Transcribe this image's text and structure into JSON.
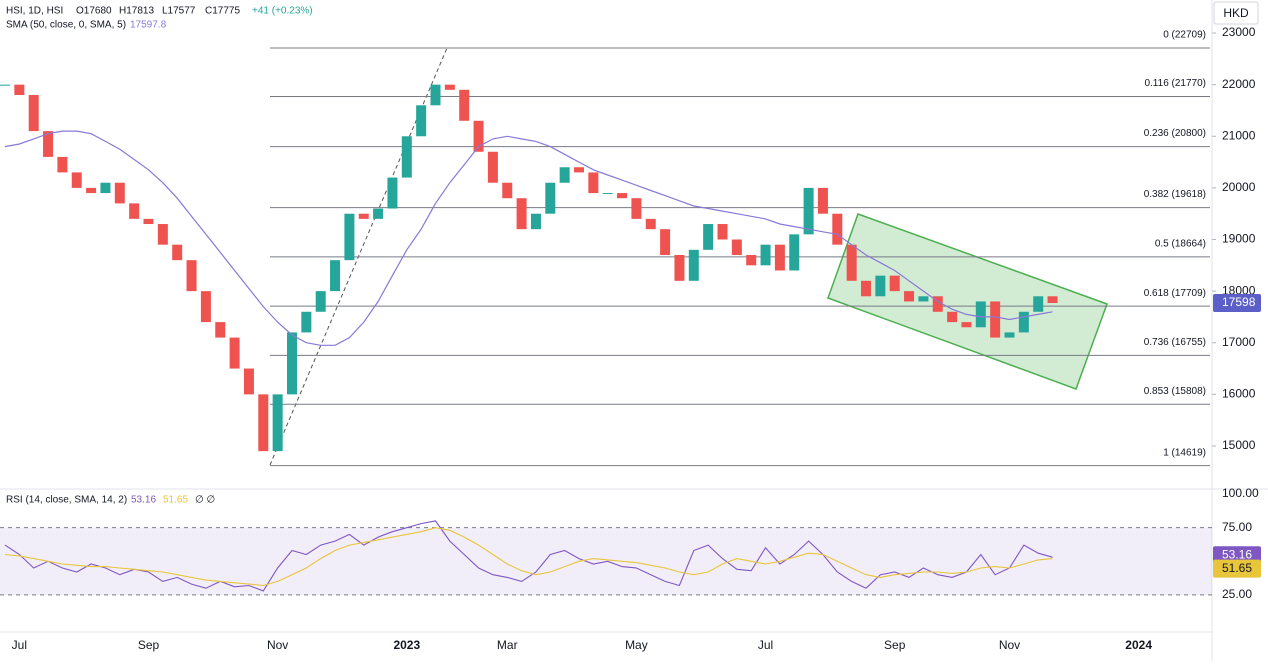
{
  "chart_data": [
    {
      "type": "candlestick",
      "legend": {
        "title": "HSI, 1D, HSI",
        "ohlc": [
          "O17680",
          "H17813",
          "L17577",
          "C17775"
        ],
        "change": "+41 (+0.23%)",
        "sma_value": "17597.8"
      },
      "currency": "HKD",
      "last_price_label": "17598",
      "categories": [
        null,
        "Jul",
        null,
        null,
        null,
        null,
        null,
        null,
        null,
        null,
        "Sep",
        null,
        null,
        null,
        null,
        null,
        null,
        null,
        null,
        "Nov",
        null,
        null,
        null,
        null,
        null,
        null,
        null,
        null,
        "2023",
        null,
        null,
        null,
        null,
        null,
        null,
        "Mar",
        null,
        null,
        null,
        null,
        null,
        null,
        null,
        null,
        "May",
        null,
        null,
        null,
        null,
        null,
        null,
        null,
        null,
        "Jul",
        null,
        null,
        null,
        null,
        null,
        null,
        null,
        null,
        "Sep",
        null,
        null,
        null,
        null,
        null,
        null,
        null,
        "Nov",
        null,
        null,
        null,
        null,
        null,
        null,
        null,
        null,
        "2024"
      ],
      "series": [
        {
          "name": "HSI",
          "up_color": "#26a69a",
          "down_color": "#ef5350",
          "values": [
            22000,
            21800,
            21100,
            20600,
            20300,
            20000,
            19900,
            20100,
            19700,
            19400,
            19300,
            18900,
            18600,
            18000,
            17400,
            17100,
            16500,
            16000,
            14900,
            16000,
            17200,
            17600,
            18000,
            18600,
            19500,
            19400,
            19600,
            20200,
            21000,
            21600,
            22000,
            21900,
            21300,
            20700,
            20100,
            19800,
            19200,
            19500,
            20100,
            20400,
            20300,
            19900,
            19900,
            19800,
            19400,
            19200,
            18700,
            18200,
            18800,
            19300,
            19000,
            18700,
            18500,
            18900,
            18400,
            19100,
            20000,
            19500,
            18900,
            18200,
            17900,
            18300,
            18000,
            17800,
            17900,
            17600,
            17400,
            17300,
            17800,
            17100,
            17200,
            17600,
            17900,
            17770,
            null,
            null,
            null,
            null,
            null,
            null
          ]
        },
        {
          "name": "SMA (50, close, 0, SMA, 5)",
          "color": "#8878d8",
          "values": [
            20800,
            20850,
            20950,
            21050,
            21100,
            21100,
            21050,
            20900,
            20750,
            20550,
            20350,
            20100,
            19800,
            19450,
            19100,
            18750,
            18400,
            18050,
            17700,
            17400,
            17150,
            17000,
            16950,
            16950,
            17100,
            17400,
            17800,
            18300,
            18800,
            19200,
            19700,
            20100,
            20450,
            20800,
            20950,
            21000,
            20950,
            20900,
            20800,
            20650,
            20500,
            20350,
            20250,
            20150,
            20050,
            19950,
            19850,
            19750,
            19650,
            19600,
            19550,
            19500,
            19450,
            19400,
            19300,
            19250,
            19200,
            19150,
            19100,
            18900,
            18700,
            18550,
            18400,
            18200,
            18000,
            17800,
            17650,
            17550,
            17500,
            17500,
            17450,
            17500,
            17550,
            17600,
            null,
            null,
            null,
            null,
            null,
            null
          ]
        }
      ],
      "fib_levels": [
        {
          "value": 22709,
          "label": "0 (22709)"
        },
        {
          "value": 21770,
          "label": "0.116 (21770)"
        },
        {
          "value": 20800,
          "label": "0.236 (20800)"
        },
        {
          "value": 19618,
          "label": "0.382 (19618)"
        },
        {
          "value": 18664,
          "label": "0.5 (18664)"
        },
        {
          "value": 17709,
          "label": "0.618 (17709)"
        },
        {
          "value": 16755,
          "label": "0.736 (16755)"
        },
        {
          "value": 15808,
          "label": "0.853 (15808)"
        },
        {
          "value": 14619,
          "label": "1 (14619)"
        }
      ],
      "ylim": [
        14186,
        23640
      ],
      "yticks": [
        15000,
        16000,
        17000,
        18000,
        19000,
        20000,
        21000,
        22000,
        23000
      ]
    },
    {
      "type": "rsi",
      "legend": {
        "title": "RSI (14, close, SMA, 14, 2)",
        "value": "53.16",
        "ma_value": "51.65",
        "extra": "∅ ∅"
      },
      "series": [
        {
          "name": "RSI",
          "color": "#7e57c2",
          "badge": "53.16",
          "values": [
            62,
            55,
            45,
            50,
            45,
            42,
            48,
            45,
            40,
            44,
            42,
            35,
            38,
            33,
            30,
            35,
            31,
            32,
            28,
            45,
            58,
            55,
            62,
            65,
            70,
            62,
            68,
            72,
            75,
            78,
            80,
            65,
            55,
            45,
            40,
            38,
            35,
            42,
            55,
            58,
            52,
            48,
            50,
            46,
            45,
            40,
            35,
            32,
            58,
            62,
            52,
            44,
            43,
            60,
            48,
            55,
            65,
            55,
            42,
            35,
            30,
            40,
            42,
            38,
            45,
            40,
            38,
            42,
            55,
            40,
            45,
            62,
            56,
            53,
            null,
            null,
            null,
            null,
            null,
            null
          ]
        },
        {
          "name": "RSI MA",
          "color": "#e8c53a",
          "badge": "51.65",
          "values": [
            55,
            54,
            52,
            50,
            48,
            47,
            46,
            46,
            45,
            44,
            43,
            42,
            40,
            38,
            36,
            35,
            34,
            33,
            32,
            35,
            40,
            45,
            52,
            58,
            62,
            64,
            66,
            68,
            70,
            72,
            75,
            73,
            68,
            62,
            55,
            48,
            43,
            40,
            42,
            46,
            50,
            52,
            51,
            50,
            49,
            47,
            45,
            42,
            40,
            42,
            48,
            52,
            50,
            48,
            50,
            53,
            56,
            55,
            50,
            45,
            40,
            38,
            40,
            41,
            42,
            42,
            41,
            42,
            45,
            46,
            45,
            48,
            51,
            52,
            null,
            null,
            null,
            null,
            null,
            null
          ]
        }
      ],
      "ylim": [
        -2.6,
        103
      ],
      "yticks": [
        {
          "value": 25,
          "label": "25.00"
        },
        {
          "value": 75,
          "label": "75.00"
        },
        {
          "value": 100,
          "label": "100.00"
        }
      ]
    }
  ]
}
